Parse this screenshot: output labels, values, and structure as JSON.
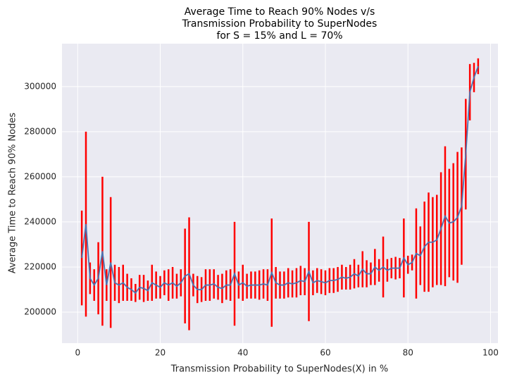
{
  "chart_data": {
    "type": "errorbar",
    "title": [
      "Average Time to Reach 90% Nodes v/s",
      "Transmission Probability to SuperNodes",
      "for S = 15% and L = 70%"
    ],
    "xlabel": "Transmission Probability to SuperNodes(X) in %",
    "ylabel": "Average Time to Reach 90% Nodes",
    "xlim": [
      -3.8,
      101.8
    ],
    "ylim": [
      186250,
      319000
    ],
    "xticks": [
      0,
      20,
      40,
      60,
      80,
      100
    ],
    "yticks": [
      200000,
      220000,
      240000,
      260000,
      280000,
      300000
    ],
    "grid": true,
    "series": [
      {
        "color": "#4c72b0",
        "error_color": "#ff0000",
        "x": [
          1,
          2,
          3,
          4,
          5,
          6,
          7,
          8,
          9,
          10,
          11,
          12,
          13,
          14,
          15,
          16,
          17,
          18,
          19,
          20,
          21,
          22,
          23,
          24,
          25,
          26,
          27,
          28,
          29,
          30,
          31,
          32,
          33,
          34,
          35,
          36,
          37,
          38,
          39,
          40,
          41,
          42,
          43,
          44,
          45,
          46,
          47,
          48,
          49,
          50,
          51,
          52,
          53,
          54,
          55,
          56,
          57,
          58,
          59,
          60,
          61,
          62,
          63,
          64,
          65,
          66,
          67,
          68,
          69,
          70,
          71,
          72,
          73,
          74,
          75,
          76,
          77,
          78,
          79,
          80,
          81,
          82,
          83,
          84,
          85,
          86,
          87,
          88,
          89,
          90,
          91,
          92,
          93,
          94,
          95,
          96,
          97
        ],
        "values": [
          224000,
          239000,
          215000,
          212000,
          215000,
          227000,
          212000,
          222000,
          213000,
          212000,
          213000,
          211000,
          210000,
          208500,
          211000,
          210500,
          209500,
          213000,
          212000,
          211000,
          213000,
          212000,
          213000,
          211500,
          213000,
          216000,
          217000,
          212000,
          210000,
          210000,
          212000,
          212000,
          212500,
          211000,
          210500,
          212000,
          212000,
          217000,
          212000,
          213000,
          211500,
          212000,
          212000,
          212000,
          212500,
          212000,
          217500,
          213000,
          212000,
          212000,
          213000,
          212500,
          213000,
          214000,
          213500,
          218000,
          213000,
          214000,
          213500,
          213000,
          214000,
          214000,
          214500,
          215500,
          215000,
          215500,
          217000,
          216000,
          219000,
          217000,
          217000,
          220000,
          218500,
          220000,
          218500,
          219500,
          219500,
          219500,
          224000,
          221000,
          222000,
          226000,
          225000,
          229000,
          231000,
          231000,
          232000,
          237000,
          242500,
          239500,
          240000,
          242000,
          247000,
          270000,
          297500,
          304000,
          309000
        ],
        "errors": [
          21000,
          41000,
          7000,
          7000,
          16000,
          33000,
          7000,
          29000,
          8000,
          8000,
          8000,
          6000,
          5000,
          4000,
          5500,
          6000,
          4500,
          8000,
          6000,
          5000,
          5500,
          7000,
          7000,
          5500,
          6000,
          21000,
          25000,
          5000,
          6000,
          5500,
          7000,
          7000,
          6500,
          5500,
          6500,
          6500,
          7000,
          23000,
          6000,
          8000,
          5500,
          6000,
          6000,
          6500,
          6500,
          7000,
          24000,
          7000,
          6000,
          6000,
          6500,
          6000,
          6500,
          6500,
          6000,
          22000,
          5500,
          5500,
          5500,
          5500,
          5500,
          5500,
          5500,
          5500,
          5000,
          5500,
          6500,
          5000,
          8000,
          6000,
          5000,
          8000,
          5000,
          13500,
          5000,
          4500,
          5000,
          4500,
          17500,
          4000,
          3500,
          20000,
          13000,
          20000,
          22000,
          20000,
          20000,
          25000,
          31000,
          24000,
          26000,
          29000,
          26000,
          24500,
          12500,
          6500,
          3500
        ]
      }
    ]
  }
}
